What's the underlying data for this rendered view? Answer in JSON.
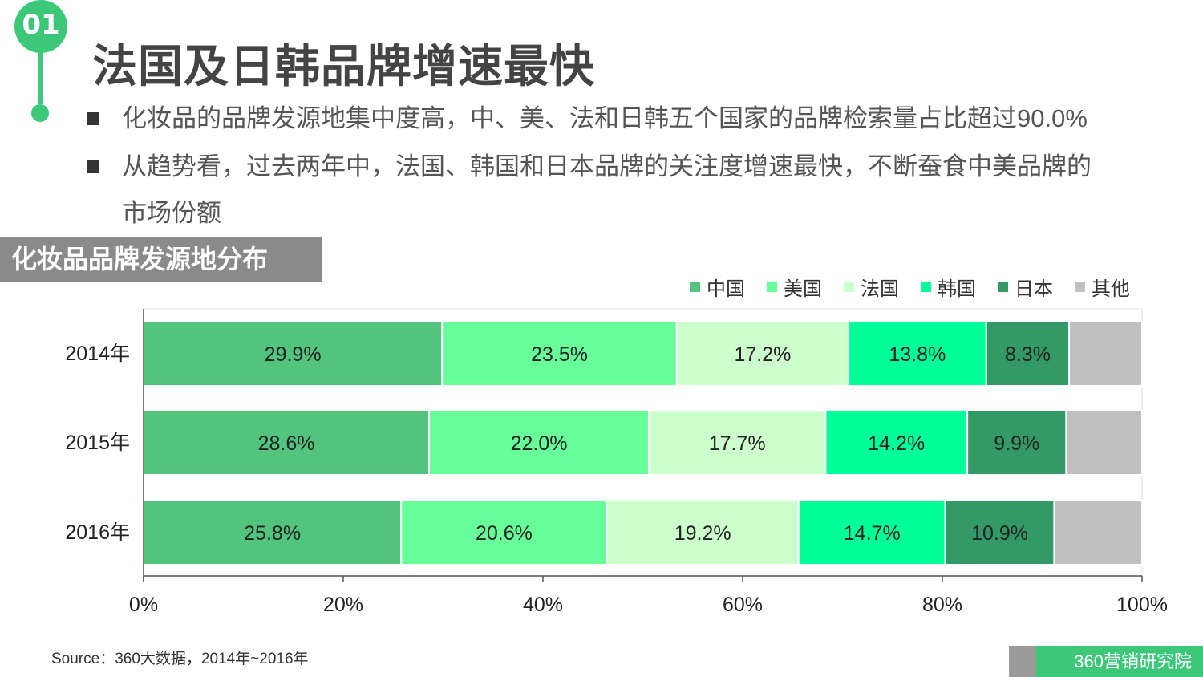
{
  "badge": "01",
  "title": "法国及日韩品牌增速最快",
  "bullets": [
    "化妆品的品牌发源地集中度高，中、美、法和日韩五个国家的品牌检索量占比超过90.0%",
    "从趋势看，过去两年中，法国、韩国和日本品牌的关注度增速最快，不断蚕食中美品牌的",
    "市场份额"
  ],
  "section_title": "化妆品品牌发源地分布",
  "source": "Source：360大数据，2014年~2016年",
  "brand": "360营销研究院",
  "colors": {
    "china": "#52c47e",
    "usa": "#66ff99",
    "france": "#ccffcc",
    "korea": "#00ff99",
    "japan": "#339966",
    "other": "#c0c0c0",
    "accent": "#3cc878"
  },
  "chart_data": {
    "type": "bar",
    "orientation": "horizontal",
    "stacked": true,
    "categories": [
      "2014年",
      "2015年",
      "2016年"
    ],
    "series": [
      {
        "name": "中国",
        "color": "#52c47e",
        "values": [
          29.9,
          28.6,
          25.8
        ],
        "labels": [
          "29.9%",
          "28.6%",
          "25.8%"
        ]
      },
      {
        "name": "美国",
        "color": "#66ff99",
        "values": [
          23.5,
          22.0,
          20.6
        ],
        "labels": [
          "23.5%",
          "22.0%",
          "20.6%"
        ]
      },
      {
        "name": "法国",
        "color": "#ccffcc",
        "values": [
          17.2,
          17.7,
          19.2
        ],
        "labels": [
          "17.2%",
          "17.7%",
          "19.2%"
        ]
      },
      {
        "name": "韩国",
        "color": "#00ff99",
        "values": [
          13.8,
          14.2,
          14.7
        ],
        "labels": [
          "13.8%",
          "14.2%",
          "14.7%"
        ]
      },
      {
        "name": "日本",
        "color": "#339966",
        "values": [
          8.3,
          9.9,
          10.9
        ],
        "labels": [
          "8.3%",
          "9.9%",
          "10.9%"
        ]
      },
      {
        "name": "其他",
        "color": "#c0c0c0",
        "values": [
          7.3,
          7.6,
          8.8
        ],
        "labels": [
          "",
          "",
          ""
        ]
      }
    ],
    "xlim": [
      0,
      100
    ],
    "xticks": [
      "0%",
      "20%",
      "40%",
      "60%",
      "80%",
      "100%"
    ],
    "legend_position": "top-right",
    "grid": false
  }
}
